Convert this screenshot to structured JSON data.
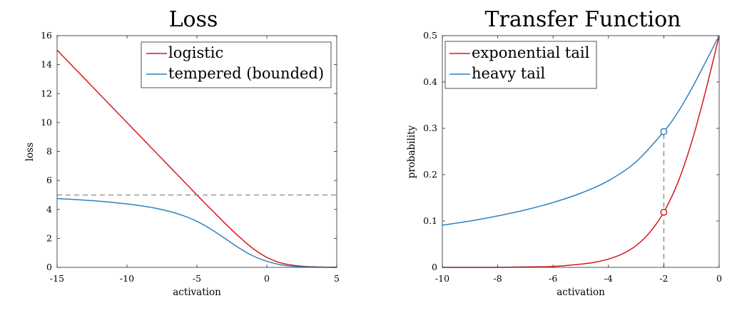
{
  "chart_data": [
    {
      "type": "line",
      "title": "Loss",
      "xlabel": "activation",
      "ylabel": "loss",
      "xlim": [
        -15,
        5
      ],
      "ylim": [
        0,
        16
      ],
      "xticks": [
        -15,
        -10,
        -5,
        0,
        5
      ],
      "yticks": [
        0,
        2,
        4,
        6,
        8,
        10,
        12,
        14,
        16
      ],
      "legend_position": "top-right",
      "series": [
        {
          "name": "logistic",
          "color": "#d7191c",
          "x": [
            -15,
            -14,
            -13,
            -12,
            -11,
            -10,
            -9,
            -8,
            -7,
            -6,
            -5,
            -4,
            -3,
            -2,
            -1,
            0,
            1,
            2,
            3,
            4,
            5
          ],
          "y": [
            15.0,
            14.0,
            13.0,
            12.0,
            11.0,
            10.0,
            9.0,
            8.0,
            7.0,
            6.0,
            5.0,
            4.02,
            3.05,
            2.13,
            1.31,
            0.69,
            0.31,
            0.13,
            0.05,
            0.02,
            0.01
          ]
        },
        {
          "name": "tempered (bounded)",
          "color": "#3182bd",
          "x": [
            -15,
            -14,
            -13,
            -12,
            -11,
            -10,
            -9,
            -8,
            -7,
            -6,
            -5,
            -4,
            -3,
            -2,
            -1,
            0,
            1,
            2,
            3,
            4,
            5
          ],
          "y": [
            4.75,
            4.7,
            4.64,
            4.57,
            4.48,
            4.38,
            4.25,
            4.09,
            3.87,
            3.58,
            3.18,
            2.64,
            2.0,
            1.35,
            0.8,
            0.42,
            0.18,
            0.07,
            0.03,
            0.01,
            0.0
          ]
        },
        {
          "name": "",
          "color": "#999999",
          "style": "dashed",
          "x": [
            -15,
            5
          ],
          "y": [
            5,
            5
          ]
        }
      ]
    },
    {
      "type": "line",
      "title": "Transfer Function",
      "xlabel": "activation",
      "ylabel": "probability",
      "xlim": [
        -10,
        0
      ],
      "ylim": [
        0,
        0.5
      ],
      "xticks": [
        -10,
        -8,
        -6,
        -4,
        -2,
        0
      ],
      "yticks": [
        0,
        0.1,
        0.2,
        0.3,
        0.4,
        0.5
      ],
      "legend_position": "top-left",
      "series": [
        {
          "name": "exponential tail",
          "color": "#d7191c",
          "x": [
            -10,
            -9,
            -8,
            -7,
            -6,
            -5,
            -4.5,
            -4,
            -3.5,
            -3,
            -2.5,
            -2,
            -1.5,
            -1,
            -0.5,
            0
          ],
          "y": [
            0.0,
            0.0,
            0.0,
            0.001,
            0.002,
            0.007,
            0.011,
            0.018,
            0.029,
            0.047,
            0.076,
            0.119,
            0.182,
            0.269,
            0.378,
            0.5
          ]
        },
        {
          "name": "heavy tail",
          "color": "#3182bd",
          "x": [
            -10,
            -9,
            -8,
            -7,
            -6,
            -5,
            -4,
            -3,
            -2,
            -1.5,
            -1,
            -0.5,
            0
          ],
          "y": [
            0.091,
            0.1,
            0.111,
            0.124,
            0.14,
            0.16,
            0.187,
            0.228,
            0.293,
            0.334,
            0.385,
            0.442,
            0.5
          ]
        }
      ],
      "markers": [
        {
          "x": -2,
          "y": 0.293,
          "color": "#3182bd"
        },
        {
          "x": -2,
          "y": 0.119,
          "color": "#d7191c"
        }
      ],
      "guide": {
        "x": -2,
        "y_from": 0,
        "y_to": 0.293,
        "color": "#999999"
      }
    }
  ]
}
